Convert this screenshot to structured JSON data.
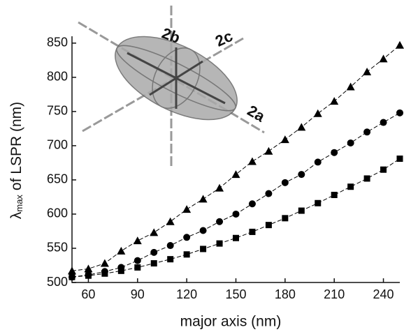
{
  "chart_data": {
    "type": "line",
    "x_label": "major axis (nm)",
    "y_label": {
      "symbol": "λ",
      "subscript": "max",
      "text": "of  LSPR (nm)"
    },
    "inset_labels": [
      "2b",
      "2c",
      "2a"
    ],
    "x": [
      50,
      60,
      70,
      80,
      90,
      100,
      110,
      120,
      130,
      140,
      150,
      160,
      170,
      180,
      190,
      200,
      210,
      220,
      230,
      240,
      250
    ],
    "series": [
      {
        "marker": "triangle",
        "color": "#000000",
        "values": [
          517,
          520,
          528,
          546,
          561,
          573,
          589,
          607,
          622,
          638,
          658,
          677,
          692,
          709,
          727,
          747,
          765,
          786,
          808,
          827,
          847
        ]
      },
      {
        "marker": "circle",
        "color": "#000000",
        "values": [
          508,
          511,
          516,
          522,
          532,
          544,
          554,
          566,
          576,
          589,
          600,
          615,
          630,
          646,
          658,
          676,
          690,
          704,
          720,
          734,
          748
        ]
      },
      {
        "marker": "square",
        "color": "#000000",
        "values": [
          508,
          510,
          513,
          517,
          522,
          528,
          534,
          541,
          549,
          557,
          565,
          574,
          584,
          594,
          605,
          616,
          628,
          640,
          652,
          665,
          681
        ]
      }
    ],
    "xlim": [
      50,
      250
    ],
    "xticks": [
      60,
      90,
      120,
      150,
      180,
      210,
      240
    ],
    "ylim": [
      500,
      860
    ],
    "yticks": [
      500,
      550,
      600,
      650,
      700,
      750,
      800,
      850
    ]
  }
}
